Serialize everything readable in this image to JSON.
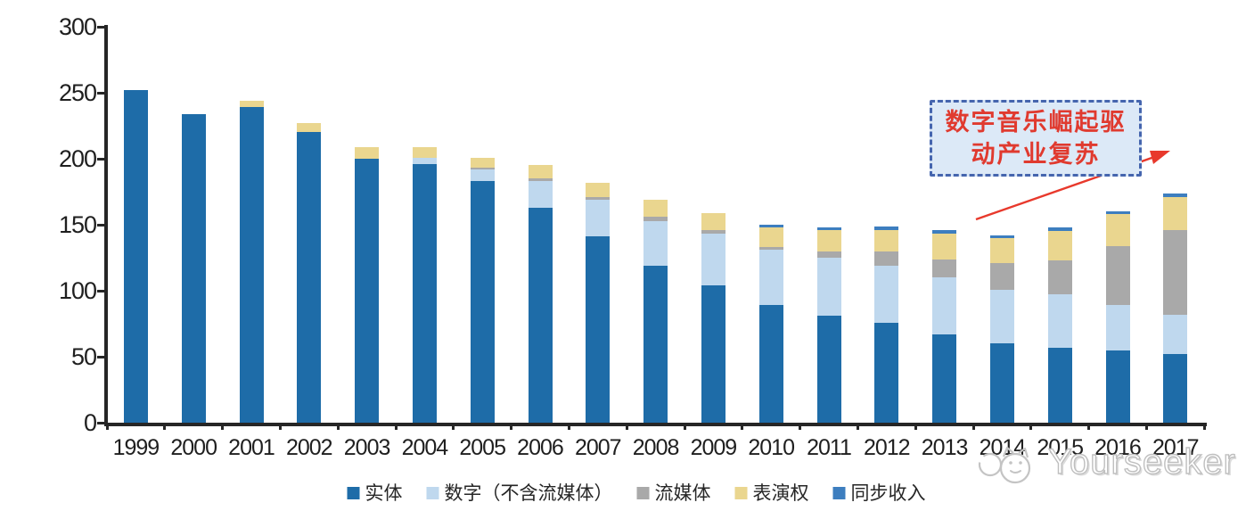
{
  "chart_data": {
    "type": "bar",
    "stacked": true,
    "title": "",
    "xlabel": "",
    "ylabel": "",
    "ylim": [
      0,
      300
    ],
    "y_ticks": [
      0,
      50,
      100,
      150,
      200,
      250,
      300
    ],
    "grid": false,
    "legend_position": "bottom",
    "categories": [
      "1999",
      "2000",
      "2001",
      "2002",
      "2003",
      "2004",
      "2005",
      "2006",
      "2007",
      "2008",
      "2009",
      "2010",
      "2011",
      "2012",
      "2013",
      "2014",
      "2015",
      "2016",
      "2017"
    ],
    "series": [
      {
        "name": "实体",
        "color": "#1E6CA8",
        "values": [
          252,
          234,
          239,
          220,
          200,
          196,
          183,
          163,
          141,
          119,
          104,
          89,
          81,
          76,
          67,
          60,
          57,
          55,
          52
        ]
      },
      {
        "name": "数字（不含流媒体）",
        "color": "#BFD8EE",
        "values": [
          0,
          0,
          0,
          0,
          0,
          5,
          9,
          20,
          28,
          34,
          39,
          42,
          44,
          43,
          43,
          41,
          40,
          34,
          30
        ]
      },
      {
        "name": "流媒体",
        "color": "#A9A9A9",
        "values": [
          0,
          0,
          0,
          0,
          0,
          0,
          1,
          2,
          2,
          3,
          3,
          2,
          5,
          11,
          14,
          20,
          26,
          45,
          64
        ]
      },
      {
        "name": "表演权",
        "color": "#EAD68F",
        "values": [
          0,
          0,
          5,
          7,
          9,
          8,
          8,
          10,
          11,
          13,
          13,
          15,
          16,
          16,
          19,
          19,
          22,
          24,
          25
        ]
      },
      {
        "name": "同步收入",
        "color": "#3D7EBF",
        "values": [
          0,
          0,
          0,
          0,
          0,
          0,
          0,
          0,
          0,
          0,
          0,
          2,
          2,
          3,
          3,
          2,
          3,
          2,
          3
        ]
      }
    ]
  },
  "annotation": {
    "line1": "数字音乐崛起驱",
    "line2": "动产业复苏",
    "text_color": "#E03A2F",
    "border_color": "#4565AE",
    "fill_color": "#DCE9F7",
    "arrow_color": "#E8392C"
  },
  "watermark": {
    "brand": "Yourseeker",
    "logo": "cat-face-logo",
    "color": "#C4C4C4"
  }
}
